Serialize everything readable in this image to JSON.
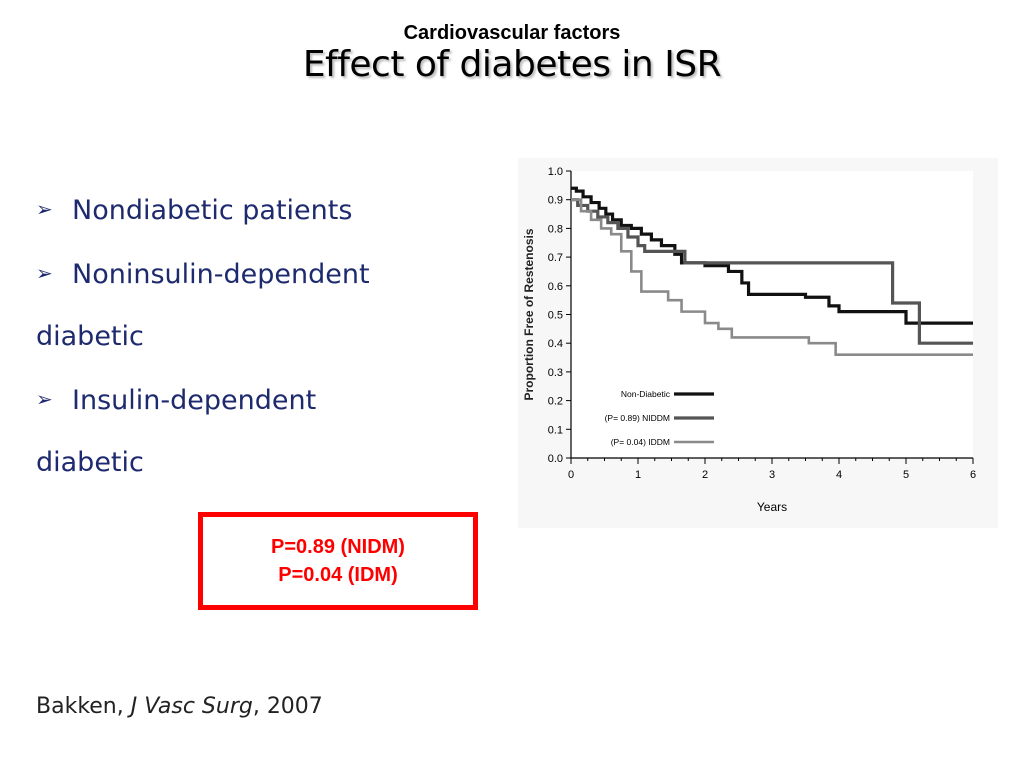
{
  "header": {
    "subtitle": "Cardiovascular factors",
    "title": "Effect of diabetes in ISR"
  },
  "bullets": [
    {
      "marker": "➢",
      "text": "Nondiabetic patients",
      "continuation": ""
    },
    {
      "marker": "➢",
      "text": "Noninsulin-dependent",
      "continuation": "diabetic"
    },
    {
      "marker": "➢",
      "text": "Insulin-dependent",
      "continuation": "diabetic"
    }
  ],
  "pvalues": {
    "line1": "P=0.89 (NIDM)",
    "line2": "P=0.04 (IDM)",
    "border_color": "#ff0000"
  },
  "citation": {
    "author": "Bakken, ",
    "journal": "J Vasc Surg",
    "year": ", 2007"
  },
  "chart_data": {
    "type": "line",
    "step": true,
    "xlabel": "Years",
    "ylabel": "Proportion Free of Restenosis",
    "xlim": [
      0,
      6
    ],
    "ylim": [
      0,
      1.0
    ],
    "x_ticks": [
      "0",
      "1",
      "2",
      "3",
      "4",
      "5",
      "6"
    ],
    "y_ticks": [
      "0.0",
      "0.1",
      "0.2",
      "0.3",
      "0.4",
      "0.5",
      "0.6",
      "0.7",
      "0.8",
      "0.9",
      "1.0"
    ],
    "grid": false,
    "legend_position": "bottom-center",
    "series": [
      {
        "name": "Non-Diabetic",
        "color": "#111111",
        "x": [
          0,
          0.08,
          0.18,
          0.3,
          0.42,
          0.52,
          0.62,
          0.75,
          0.9,
          1.05,
          1.2,
          1.35,
          1.55,
          1.65,
          2.0,
          2.35,
          2.55,
          2.65,
          3.1,
          3.5,
          3.85,
          4.0,
          4.5,
          4.8,
          5.0,
          5.6,
          6.0
        ],
        "y": [
          0.94,
          0.93,
          0.91,
          0.89,
          0.87,
          0.85,
          0.83,
          0.81,
          0.8,
          0.78,
          0.76,
          0.74,
          0.71,
          0.68,
          0.67,
          0.65,
          0.61,
          0.57,
          0.57,
          0.56,
          0.53,
          0.51,
          0.51,
          0.51,
          0.47,
          0.47,
          0.47
        ]
      },
      {
        "name": "(P= 0.89) NIDDM",
        "color": "#555555",
        "x": [
          0,
          0.1,
          0.25,
          0.4,
          0.55,
          0.7,
          0.85,
          1.0,
          1.1,
          1.3,
          1.5,
          1.7,
          2.0,
          2.5,
          3.0,
          3.5,
          4.0,
          4.5,
          4.8,
          5.0,
          5.2,
          5.5,
          6.0
        ],
        "y": [
          0.9,
          0.88,
          0.86,
          0.84,
          0.82,
          0.8,
          0.77,
          0.74,
          0.72,
          0.72,
          0.72,
          0.68,
          0.68,
          0.68,
          0.68,
          0.68,
          0.68,
          0.68,
          0.54,
          0.54,
          0.4,
          0.4,
          0.4
        ]
      },
      {
        "name": "(P= 0.04) IDDM",
        "color": "#8a8a8a",
        "x": [
          0,
          0.15,
          0.3,
          0.45,
          0.6,
          0.75,
          0.9,
          1.05,
          1.25,
          1.45,
          1.65,
          1.8,
          2.0,
          2.2,
          2.4,
          2.75,
          3.2,
          3.55,
          3.95,
          4.5,
          5.0,
          6.0
        ],
        "y": [
          0.9,
          0.86,
          0.83,
          0.8,
          0.78,
          0.72,
          0.65,
          0.58,
          0.58,
          0.55,
          0.51,
          0.51,
          0.47,
          0.45,
          0.42,
          0.42,
          0.42,
          0.4,
          0.36,
          0.36,
          0.36,
          0.36
        ]
      }
    ]
  }
}
